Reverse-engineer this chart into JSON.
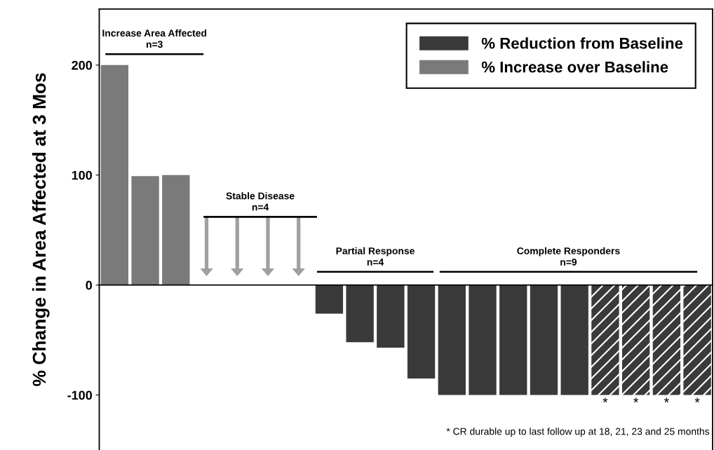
{
  "chart_data": {
    "type": "bar",
    "ylabel": "% Change in Area Affected at 3 Mos",
    "categories": [
      null,
      null,
      null,
      null,
      null,
      null,
      null,
      null,
      null,
      null,
      null,
      null,
      null,
      null,
      null,
      null,
      null,
      null,
      null,
      null
    ],
    "series": [
      {
        "name": "% Reduction from Baseline",
        "color": "#3a3a3a",
        "values": [
          null,
          null,
          null,
          null,
          null,
          null,
          null,
          -26,
          -52,
          -57,
          -85,
          -100,
          -100,
          -100,
          -100,
          -100,
          null,
          null,
          null,
          null
        ]
      },
      {
        "name": "% Increase over Baseline",
        "color": "#7a7a7a",
        "values": [
          200,
          99,
          100,
          null,
          null,
          null,
          null,
          null,
          null,
          null,
          null,
          null,
          null,
          null,
          null,
          null,
          null,
          null,
          null,
          null
        ]
      },
      {
        "color": "#3a3a3a",
        "values": [
          null,
          null,
          null,
          null,
          null,
          null,
          null,
          null,
          null,
          null,
          null,
          null,
          null,
          null,
          null,
          null,
          -100,
          -100,
          -100,
          -100
        ],
        "value_labels": [
          null,
          null,
          null,
          null,
          null,
          null,
          null,
          null,
          null,
          null,
          null,
          null,
          null,
          null,
          null,
          null,
          "*",
          "*",
          "*",
          "*"
        ]
      }
    ],
    "ylim": [
      -150,
      251
    ],
    "yticks": [
      200,
      100,
      0,
      -100
    ],
    "legend": "top right",
    "annotations": [
      "Increase Area Affected\nn=3",
      "Stable Disease\nn=4",
      "Partial Response\nn=4",
      "Complete Responders\nn=9",
      "* CR durable up to last follow up at 18, 21, 23 and 25 months"
    ]
  }
}
